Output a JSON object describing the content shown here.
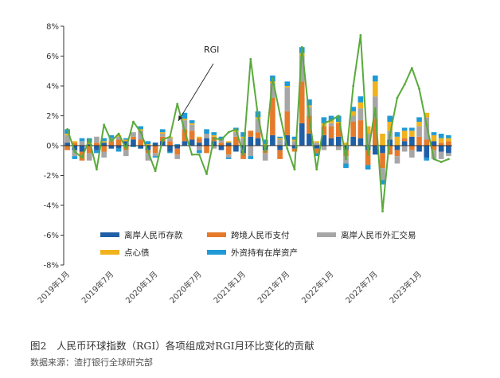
{
  "caption": "图2　人民币环球指数（RGI）各项组成对RGI月环比变化的贡献",
  "source": "数据来源：渣打银行全球研究部",
  "chart_data": {
    "type": "bar",
    "stacked": true,
    "annotation": "RGI",
    "ylim": [
      -8,
      8
    ],
    "yticks": [
      "8%",
      "6%",
      "4%",
      "2%",
      "0%",
      "-2%",
      "-4%",
      "-6%",
      "-8%"
    ],
    "xtick_labels": [
      "2019年1月",
      "2019年7月",
      "2020年1月",
      "2020年7月",
      "2021年1月",
      "2021年7月",
      "2022年1月",
      "2022年7月",
      "2023年1月"
    ],
    "xtick_index": [
      0,
      6,
      12,
      18,
      24,
      30,
      36,
      42,
      48
    ],
    "months": 53,
    "series": [
      {
        "name": "离岸人民币存款",
        "color": "#1f5fa6",
        "values": [
          0.2,
          -0.3,
          -0.4,
          0.1,
          -0.3,
          0.2,
          -0.2,
          -0.2,
          0.3,
          0.4,
          -0.2,
          -0.3,
          0.2,
          0.3,
          -0.4,
          -0.2,
          0.3,
          0.4,
          0.2,
          0.5,
          0.3,
          -0.3,
          0.2,
          -0.4,
          -0.5,
          0.6,
          0.5,
          -0.3,
          0.7,
          -0.3,
          0.7,
          -0.2,
          1.5,
          0.8,
          -0.2,
          0.7,
          0.5,
          0.6,
          -0.3,
          0.6,
          0.5,
          -0.3,
          -0.6,
          -0.5,
          0.4,
          -0.3,
          0.3,
          0.6,
          -0.4,
          -0.8,
          0.3,
          -0.4,
          -0.5
        ]
      },
      {
        "name": "跨境人民币支付",
        "color": "#e67a2b",
        "values": [
          -0.3,
          0.2,
          -0.6,
          -0.5,
          0.2,
          -0.4,
          0.3,
          0.4,
          -0.3,
          0.2,
          0.4,
          -0.2,
          -0.5,
          0.3,
          0.3,
          -0.4,
          0.8,
          0.6,
          0.3,
          -0.5,
          0.3,
          0.2,
          -0.6,
          0.6,
          -0.4,
          0.4,
          0.4,
          -0.2,
          2.5,
          -0.6,
          1.6,
          -0.2,
          2.8,
          1.2,
          -0.3,
          0.6,
          0.8,
          0.9,
          -0.4,
          1.0,
          1.2,
          -1.0,
          1.8,
          -1.0,
          -0.6,
          -0.4,
          0.2,
          -0.3,
          0.6,
          0.4,
          -0.3,
          0.2,
          0.3
        ]
      },
      {
        "name": "离岸人民币外汇交易",
        "color": "#a6a6a6",
        "values": [
          0.5,
          -0.4,
          0.3,
          -0.5,
          0.4,
          -0.4,
          0.2,
          0.2,
          -0.4,
          0.3,
          0.6,
          -0.5,
          -0.2,
          0.2,
          0.2,
          -0.3,
          0.6,
          0.4,
          -0.3,
          0.3,
          -0.2,
          0.2,
          -0.2,
          0.3,
          0.5,
          -0.7,
          0.9,
          -0.5,
          1.0,
          0.4,
          1.6,
          0.3,
          1.7,
          0.6,
          0.2,
          -0.3,
          0.2,
          -0.3,
          -0.5,
          0.4,
          0.8,
          0.8,
          1.5,
          -0.8,
          0.6,
          -0.5,
          -0.4,
          -0.5,
          0.7,
          1.5,
          -0.6,
          -0.5,
          -0.2
        ]
      },
      {
        "name": "点心债",
        "color": "#f0b31c",
        "values": [
          0.1,
          0.1,
          0.0,
          0.1,
          0.0,
          0.1,
          0.0,
          0.1,
          0.1,
          0.0,
          0.1,
          0.1,
          0.0,
          0.1,
          0.1,
          0.0,
          0.1,
          0.1,
          0.1,
          0.0,
          0.1,
          0.0,
          0.1,
          0.1,
          0.1,
          0.0,
          0.1,
          0.1,
          0.1,
          0.1,
          0.1,
          0.1,
          0.2,
          0.1,
          0.1,
          0.2,
          0.2,
          0.1,
          0.2,
          0.3,
          0.4,
          0.5,
          1.0,
          0.8,
          0.6,
          0.6,
          0.5,
          0.4,
          0.3,
          0.3,
          0.4,
          0.3,
          0.2
        ]
      },
      {
        "name": "外资持有在岸资产",
        "color": "#1f9ad6",
        "values": [
          0.3,
          -0.2,
          0.2,
          0.3,
          -0.2,
          0.2,
          0.2,
          -0.2,
          0.1,
          -0.1,
          0.2,
          0.2,
          -0.1,
          0.2,
          -0.1,
          0.1,
          0.4,
          0.2,
          -0.2,
          0.3,
          0.2,
          0.2,
          -0.1,
          0.2,
          0.3,
          -0.2,
          0.4,
          0.3,
          0.4,
          0.1,
          0.3,
          0.2,
          0.4,
          0.4,
          -0.2,
          0.4,
          0.3,
          0.4,
          -0.3,
          0.3,
          0.4,
          -0.3,
          0.4,
          -0.3,
          0.4,
          0.3,
          0.2,
          0.2,
          0.3,
          -0.2,
          0.2,
          0.3,
          0.2
        ]
      },
      {
        "name": "RGI",
        "color": "#5aaa3c",
        "type": "line",
        "values": [
          1.1,
          -0.4,
          -0.8,
          0.4,
          -1.6,
          1.4,
          0.3,
          0.8,
          -0.2,
          1.6,
          0.9,
          -0.4,
          -1.7,
          0.4,
          0.6,
          2.8,
          1.0,
          -0.6,
          -0.6,
          -1.9,
          0.5,
          0.4,
          0.9,
          1.1,
          -0.6,
          5.8,
          2.0,
          -0.4,
          4.5,
          2.1,
          -0.2,
          -1.6,
          6.6,
          1.9,
          -1.6,
          1.5,
          1.7,
          2.0,
          -0.9,
          4.0,
          7.4,
          -0.6,
          2.5,
          -4.4,
          0.7,
          3.2,
          4.1,
          5.2,
          3.8,
          1.4,
          -0.9,
          -1.1,
          -0.9
        ]
      }
    ],
    "legend": [
      "离岸人民币存款",
      "跨境人民币支付",
      "离岸人民币外汇交易",
      "点心债",
      "外资持有在岸资产"
    ]
  }
}
